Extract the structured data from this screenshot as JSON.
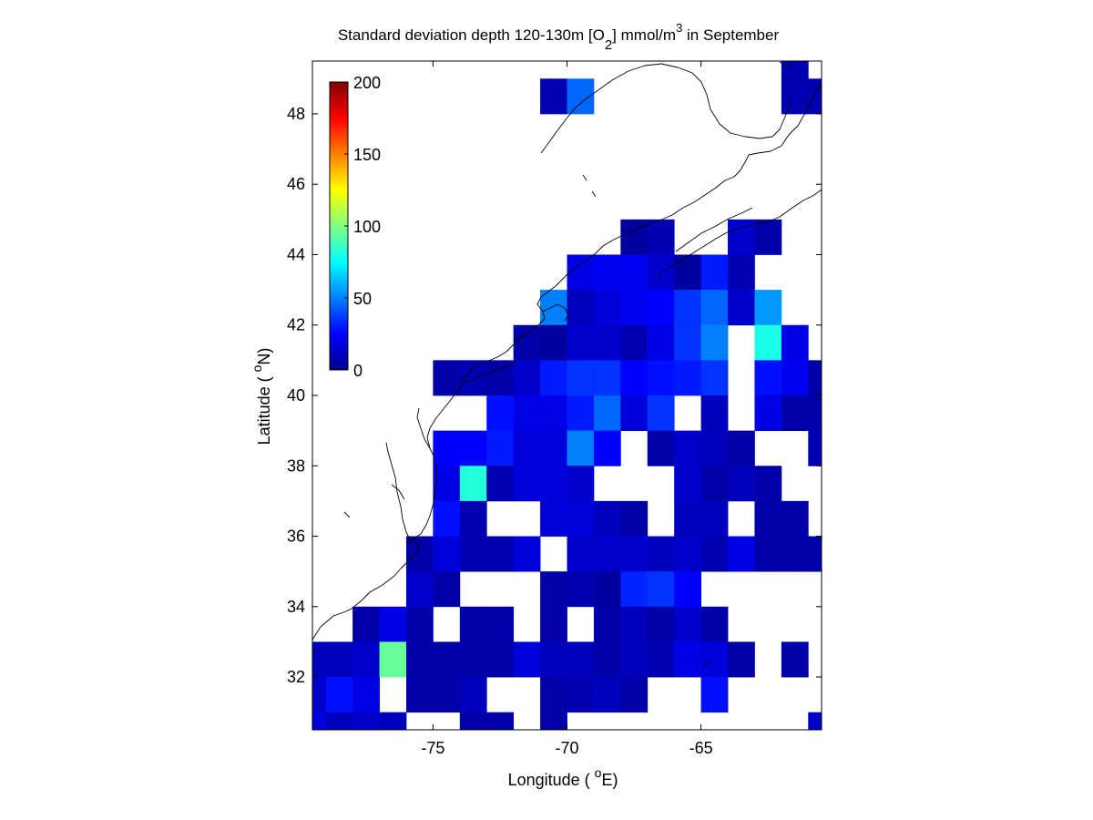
{
  "chart_data": {
    "type": "heatmap",
    "title": {
      "part1": "Standard deviation depth 120-130m [O",
      "sub": "2",
      "part2": "] mmol/m",
      "sup": "3",
      "part3": " in September"
    },
    "xlabel": {
      "pre": "Longitude ( ",
      "sup": "o",
      "post": "E)"
    },
    "ylabel": {
      "pre": "Latitude ( ",
      "sup": "o",
      "post": "N)"
    },
    "xlim": [
      -79.5,
      -60.5
    ],
    "ylim": [
      30.5,
      49.5
    ],
    "x_ticks": [
      -75,
      -70,
      -65
    ],
    "y_ticks": [
      32,
      34,
      36,
      38,
      40,
      42,
      44,
      46,
      48
    ],
    "colorbar": {
      "min": 0,
      "max": 200,
      "ticks": [
        0,
        50,
        100,
        150,
        200
      ],
      "colormap": "jet",
      "position": "top-left"
    },
    "cell_size_deg": 1,
    "cells": [
      [
        -70.5,
        48.5,
        10
      ],
      [
        -69.5,
        48.5,
        45
      ],
      [
        -61.5,
        49.5,
        10
      ],
      [
        -61.5,
        48.5,
        10
      ],
      [
        -60.5,
        48.5,
        10
      ],
      [
        -67.5,
        44.5,
        6
      ],
      [
        -66.5,
        44.5,
        10
      ],
      [
        -63.5,
        44.5,
        15
      ],
      [
        -62.5,
        44.5,
        8
      ],
      [
        -69.5,
        43.5,
        20
      ],
      [
        -68.5,
        43.5,
        22
      ],
      [
        -67.5,
        43.5,
        22
      ],
      [
        -66.5,
        43.5,
        15
      ],
      [
        -65.5,
        43.5,
        6
      ],
      [
        -64.5,
        43.5,
        30
      ],
      [
        -63.5,
        43.5,
        10
      ],
      [
        -70.5,
        42.5,
        50
      ],
      [
        -69.5,
        42.5,
        12
      ],
      [
        -68.5,
        42.5,
        18
      ],
      [
        -67.5,
        42.5,
        22
      ],
      [
        -66.5,
        42.5,
        25
      ],
      [
        -65.5,
        42.5,
        35
      ],
      [
        -64.5,
        42.5,
        45
      ],
      [
        -63.5,
        42.5,
        15
      ],
      [
        -62.5,
        42.5,
        55
      ],
      [
        -71.5,
        41.5,
        8
      ],
      [
        -70.5,
        41.5,
        6
      ],
      [
        -69.5,
        41.5,
        15
      ],
      [
        -68.5,
        41.5,
        15
      ],
      [
        -67.5,
        41.5,
        10
      ],
      [
        -66.5,
        41.5,
        20
      ],
      [
        -65.5,
        41.5,
        35
      ],
      [
        -64.5,
        41.5,
        50
      ],
      [
        -62.5,
        41.5,
        80
      ],
      [
        -61.5,
        41.5,
        20
      ],
      [
        -74.5,
        40.5,
        8
      ],
      [
        -73.5,
        40.5,
        10
      ],
      [
        -72.5,
        40.5,
        8
      ],
      [
        -71.5,
        40.5,
        15
      ],
      [
        -70.5,
        40.5,
        30
      ],
      [
        -69.5,
        40.5,
        35
      ],
      [
        -68.5,
        40.5,
        35
      ],
      [
        -67.5,
        40.5,
        25
      ],
      [
        -66.5,
        40.5,
        28
      ],
      [
        -65.5,
        40.5,
        30
      ],
      [
        -64.5,
        40.5,
        35
      ],
      [
        -62.5,
        40.5,
        28
      ],
      [
        -61.5,
        40.5,
        22
      ],
      [
        -60.5,
        40.5,
        8
      ],
      [
        -72.5,
        39.5,
        28
      ],
      [
        -71.5,
        39.5,
        20
      ],
      [
        -70.5,
        39.5,
        20
      ],
      [
        -69.5,
        39.5,
        30
      ],
      [
        -68.5,
        39.5,
        45
      ],
      [
        -67.5,
        39.5,
        18
      ],
      [
        -66.5,
        39.5,
        35
      ],
      [
        -64.5,
        39.5,
        12
      ],
      [
        -62.5,
        39.5,
        20
      ],
      [
        -61.5,
        39.5,
        8
      ],
      [
        -60.5,
        39.5,
        8
      ],
      [
        -74.5,
        38.5,
        25
      ],
      [
        -73.5,
        38.5,
        25
      ],
      [
        -72.5,
        38.5,
        30
      ],
      [
        -71.5,
        38.5,
        18
      ],
      [
        -70.5,
        38.5,
        18
      ],
      [
        -69.5,
        38.5,
        50
      ],
      [
        -68.5,
        38.5,
        25
      ],
      [
        -66.5,
        38.5,
        8
      ],
      [
        -65.5,
        38.5,
        15
      ],
      [
        -64.5,
        38.5,
        12
      ],
      [
        -63.5,
        38.5,
        8
      ],
      [
        -60.5,
        38.5,
        10
      ],
      [
        -74.5,
        37.5,
        20
      ],
      [
        -73.5,
        37.5,
        82
      ],
      [
        -72.5,
        37.5,
        10
      ],
      [
        -71.5,
        37.5,
        18
      ],
      [
        -70.5,
        37.5,
        18
      ],
      [
        -69.5,
        37.5,
        15
      ],
      [
        -65.5,
        37.5,
        15
      ],
      [
        -64.5,
        37.5,
        8
      ],
      [
        -63.5,
        37.5,
        12
      ],
      [
        -62.5,
        37.5,
        8
      ],
      [
        -74.5,
        36.5,
        28
      ],
      [
        -73.5,
        36.5,
        10
      ],
      [
        -70.5,
        36.5,
        18
      ],
      [
        -69.5,
        36.5,
        18
      ],
      [
        -68.5,
        36.5,
        12
      ],
      [
        -67.5,
        36.5,
        8
      ],
      [
        -65.5,
        36.5,
        12
      ],
      [
        -64.5,
        36.5,
        12
      ],
      [
        -62.5,
        36.5,
        8
      ],
      [
        -61.5,
        36.5,
        8
      ],
      [
        -75.5,
        35.5,
        8
      ],
      [
        -74.5,
        35.5,
        18
      ],
      [
        -73.5,
        35.5,
        10
      ],
      [
        -72.5,
        35.5,
        10
      ],
      [
        -71.5,
        35.5,
        18
      ],
      [
        -69.5,
        35.5,
        15
      ],
      [
        -68.5,
        35.5,
        15
      ],
      [
        -67.5,
        35.5,
        15
      ],
      [
        -66.5,
        35.5,
        12
      ],
      [
        -65.5,
        35.5,
        15
      ],
      [
        -64.5,
        35.5,
        10
      ],
      [
        -63.5,
        35.5,
        20
      ],
      [
        -62.5,
        35.5,
        8
      ],
      [
        -61.5,
        35.5,
        8
      ],
      [
        -60.5,
        35.5,
        8
      ],
      [
        -75.5,
        34.5,
        15
      ],
      [
        -74.5,
        34.5,
        8
      ],
      [
        -70.5,
        34.5,
        8
      ],
      [
        -69.5,
        34.5,
        10
      ],
      [
        -68.5,
        34.5,
        6
      ],
      [
        -67.5,
        34.5,
        32
      ],
      [
        -66.5,
        34.5,
        35
      ],
      [
        -65.5,
        34.5,
        25
      ],
      [
        -77.5,
        33.5,
        8
      ],
      [
        -76.5,
        33.5,
        20
      ],
      [
        -75.5,
        33.5,
        8
      ],
      [
        -73.5,
        33.5,
        8
      ],
      [
        -72.5,
        33.5,
        8
      ],
      [
        -70.5,
        33.5,
        8
      ],
      [
        -68.5,
        33.5,
        8
      ],
      [
        -67.5,
        33.5,
        12
      ],
      [
        -66.5,
        33.5,
        8
      ],
      [
        -65.5,
        33.5,
        15
      ],
      [
        -64.5,
        33.5,
        8
      ],
      [
        -79.5,
        32.5,
        12
      ],
      [
        -78.5,
        32.5,
        12
      ],
      [
        -77.5,
        32.5,
        15
      ],
      [
        -76.5,
        32.5,
        95
      ],
      [
        -75.5,
        32.5,
        8
      ],
      [
        -74.5,
        32.5,
        8
      ],
      [
        -73.5,
        32.5,
        8
      ],
      [
        -72.5,
        32.5,
        8
      ],
      [
        -71.5,
        32.5,
        18
      ],
      [
        -70.5,
        32.5,
        12
      ],
      [
        -69.5,
        32.5,
        12
      ],
      [
        -68.5,
        32.5,
        8
      ],
      [
        -67.5,
        32.5,
        12
      ],
      [
        -66.5,
        32.5,
        10
      ],
      [
        -65.5,
        32.5,
        20
      ],
      [
        -64.5,
        32.5,
        18
      ],
      [
        -63.5,
        32.5,
        8
      ],
      [
        -61.5,
        32.5,
        8
      ],
      [
        -79.5,
        31.5,
        15
      ],
      [
        -78.5,
        31.5,
        28
      ],
      [
        -77.5,
        31.5,
        20
      ],
      [
        -75.5,
        31.5,
        8
      ],
      [
        -74.5,
        31.5,
        8
      ],
      [
        -73.5,
        31.5,
        12
      ],
      [
        -70.5,
        31.5,
        8
      ],
      [
        -69.5,
        31.5,
        10
      ],
      [
        -68.5,
        31.5,
        12
      ],
      [
        -67.5,
        31.5,
        8
      ],
      [
        -64.5,
        31.5,
        28
      ],
      [
        -79.5,
        30.5,
        18
      ],
      [
        -78.5,
        30.5,
        12
      ],
      [
        -77.5,
        30.5,
        15
      ],
      [
        -76.5,
        30.5,
        12
      ],
      [
        -73.5,
        30.5,
        8
      ],
      [
        -72.5,
        30.5,
        8
      ],
      [
        -70.5,
        30.5,
        8
      ],
      [
        -60.5,
        30.5,
        15
      ]
    ]
  }
}
